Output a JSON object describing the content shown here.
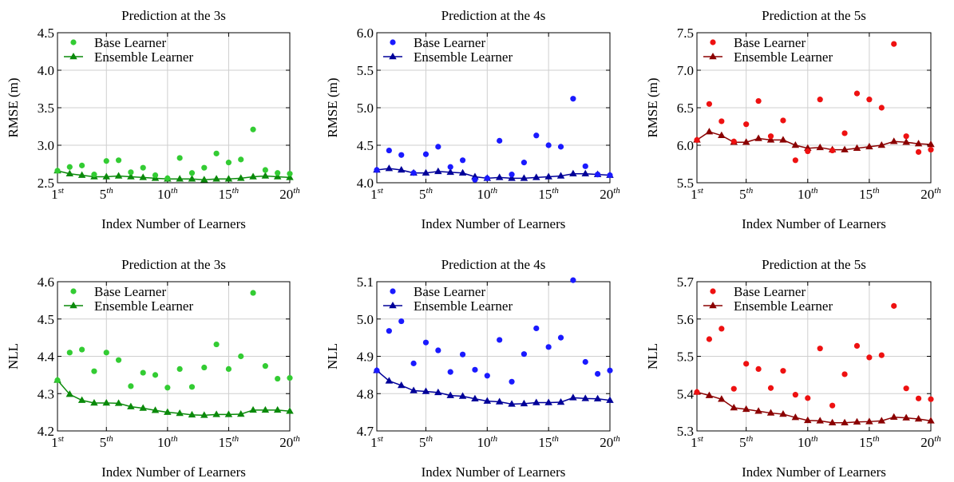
{
  "x_ticks": [
    {
      "value": 1,
      "num": "1",
      "suffix": "st"
    },
    {
      "value": 5,
      "num": "5",
      "suffix": "th"
    },
    {
      "value": 10,
      "num": "10",
      "suffix": "th"
    },
    {
      "value": 15,
      "num": "15",
      "suffix": "th"
    },
    {
      "value": 20,
      "num": "20",
      "suffix": "th"
    }
  ],
  "chart_data": [
    {
      "type": "scatter+line",
      "title": "Prediction at the 3s",
      "xlabel": "Index Number of Learners",
      "ylabel": "RMSE (m)",
      "xlim": [
        1,
        20
      ],
      "ylim": [
        2.5,
        4.5
      ],
      "yticks": [
        "2.5",
        "3.0",
        "3.5",
        "4.0",
        "4.5"
      ],
      "grid": true,
      "legend": "top-left",
      "color": "#33cc33",
      "line_color": "#0a8a0a",
      "x": [
        1,
        2,
        3,
        4,
        5,
        6,
        7,
        8,
        9,
        10,
        11,
        12,
        13,
        14,
        15,
        16,
        17,
        18,
        19,
        20
      ],
      "series": [
        {
          "name": "Base Learner",
          "values": [
            2.66,
            2.71,
            2.73,
            2.61,
            2.79,
            2.8,
            2.64,
            2.7,
            2.6,
            2.56,
            2.83,
            2.63,
            2.7,
            2.89,
            2.77,
            2.81,
            3.21,
            2.67,
            2.63,
            2.62
          ]
        },
        {
          "name": "Ensemble Learner",
          "values": [
            2.66,
            2.62,
            2.6,
            2.58,
            2.58,
            2.59,
            2.58,
            2.57,
            2.56,
            2.55,
            2.55,
            2.55,
            2.54,
            2.55,
            2.55,
            2.56,
            2.58,
            2.59,
            2.58,
            2.57
          ]
        }
      ]
    },
    {
      "type": "scatter+line",
      "title": "Prediction at the 4s",
      "xlabel": "Index Number of Learners",
      "ylabel": "RMSE (m)",
      "xlim": [
        1,
        20
      ],
      "ylim": [
        4.0,
        6.0
      ],
      "yticks": [
        "4.0",
        "4.5",
        "5.0",
        "5.5",
        "6.0"
      ],
      "grid": true,
      "legend": "top-left",
      "color": "#1a1aff",
      "line_color": "#000099",
      "x": [
        1,
        2,
        3,
        4,
        5,
        6,
        7,
        8,
        9,
        10,
        11,
        12,
        13,
        14,
        15,
        16,
        17,
        18,
        19,
        20
      ],
      "series": [
        {
          "name": "Base Learner",
          "values": [
            4.17,
            4.43,
            4.37,
            4.13,
            4.38,
            4.48,
            4.21,
            4.3,
            4.04,
            4.06,
            4.56,
            4.11,
            4.27,
            4.63,
            4.5,
            4.48,
            5.12,
            4.22,
            4.11,
            4.1
          ]
        },
        {
          "name": "Ensemble Learner",
          "values": [
            4.17,
            4.19,
            4.17,
            4.13,
            4.13,
            4.15,
            4.14,
            4.13,
            4.08,
            4.06,
            4.07,
            4.06,
            4.06,
            4.07,
            4.08,
            4.09,
            4.12,
            4.12,
            4.11,
            4.1
          ]
        }
      ]
    },
    {
      "type": "scatter+line",
      "title": "Prediction at the 5s",
      "xlabel": "Index Number of Learners",
      "ylabel": "RMSE (m)",
      "xlim": [
        1,
        20
      ],
      "ylim": [
        5.5,
        7.5
      ],
      "yticks": [
        "5.5",
        "6.0",
        "6.5",
        "7.0",
        "7.5"
      ],
      "grid": true,
      "legend": "top-left",
      "color": "#ee1111",
      "line_color": "#8b0000",
      "x": [
        1,
        2,
        3,
        4,
        5,
        6,
        7,
        8,
        9,
        10,
        11,
        12,
        13,
        14,
        15,
        16,
        17,
        18,
        19,
        20
      ],
      "series": [
        {
          "name": "Base Learner",
          "values": [
            6.07,
            6.55,
            6.32,
            6.05,
            6.28,
            6.59,
            6.12,
            6.33,
            5.8,
            5.92,
            6.61,
            5.93,
            6.16,
            6.69,
            6.61,
            6.5,
            7.35,
            6.12,
            5.91,
            5.94
          ]
        },
        {
          "name": "Ensemble Learner",
          "values": [
            6.07,
            6.18,
            6.13,
            6.04,
            6.04,
            6.09,
            6.07,
            6.07,
            6.0,
            5.96,
            5.97,
            5.94,
            5.94,
            5.96,
            5.98,
            6.0,
            6.05,
            6.04,
            6.02,
            6.01
          ]
        }
      ]
    },
    {
      "type": "scatter+line",
      "title": "Prediction at the 3s",
      "xlabel": "Index Number of Learners",
      "ylabel": "NLL",
      "xlim": [
        1,
        20
      ],
      "ylim": [
        4.2,
        4.6
      ],
      "yticks": [
        "4.2",
        "4.3",
        "4.4",
        "4.5",
        "4.6"
      ],
      "grid": true,
      "legend": "top-left",
      "color": "#33cc33",
      "line_color": "#0a8a0a",
      "x": [
        1,
        2,
        3,
        4,
        5,
        6,
        7,
        8,
        9,
        10,
        11,
        12,
        13,
        14,
        15,
        16,
        17,
        18,
        19,
        20
      ],
      "series": [
        {
          "name": "Base Learner",
          "values": [
            4.336,
            4.41,
            4.418,
            4.36,
            4.41,
            4.39,
            4.32,
            4.356,
            4.35,
            4.316,
            4.366,
            4.318,
            4.37,
            4.432,
            4.366,
            4.4,
            4.57,
            4.374,
            4.34,
            4.342
          ]
        },
        {
          "name": "Ensemble Learner",
          "values": [
            4.336,
            4.298,
            4.282,
            4.275,
            4.275,
            4.274,
            4.265,
            4.261,
            4.255,
            4.25,
            4.247,
            4.243,
            4.242,
            4.244,
            4.244,
            4.245,
            4.256,
            4.256,
            4.256,
            4.253
          ]
        }
      ]
    },
    {
      "type": "scatter+line",
      "title": "Prediction at the 4s",
      "xlabel": "Index Number of Learners",
      "ylabel": "NLL",
      "xlim": [
        1,
        20
      ],
      "ylim": [
        4.7,
        5.1
      ],
      "yticks": [
        "4.7",
        "4.8",
        "4.9",
        "5.0",
        "5.1"
      ],
      "grid": true,
      "legend": "top-left",
      "color": "#1a1aff",
      "line_color": "#000099",
      "x": [
        1,
        2,
        3,
        4,
        5,
        6,
        7,
        8,
        9,
        10,
        11,
        12,
        13,
        14,
        15,
        16,
        17,
        18,
        19,
        20
      ],
      "series": [
        {
          "name": "Base Learner",
          "values": [
            4.862,
            4.968,
            4.994,
            4.881,
            4.937,
            4.916,
            4.858,
            4.905,
            4.864,
            4.848,
            4.944,
            4.832,
            4.906,
            4.975,
            4.925,
            4.95,
            5.104,
            4.885,
            4.853,
            4.862
          ]
        },
        {
          "name": "Ensemble Learner",
          "values": [
            4.862,
            4.834,
            4.822,
            4.808,
            4.806,
            4.803,
            4.795,
            4.793,
            4.786,
            4.78,
            4.778,
            4.772,
            4.773,
            4.776,
            4.776,
            4.777,
            4.789,
            4.787,
            4.786,
            4.782
          ]
        }
      ]
    },
    {
      "type": "scatter+line",
      "title": "Prediction at the 5s",
      "xlabel": "Index Number of Learners",
      "ylabel": "NLL",
      "xlim": [
        1,
        20
      ],
      "ylim": [
        5.3,
        5.7
      ],
      "yticks": [
        "5.3",
        "5.4",
        "5.5",
        "5.6",
        "5.7"
      ],
      "grid": true,
      "legend": "top-left",
      "color": "#ee1111",
      "line_color": "#8b0000",
      "x": [
        1,
        2,
        3,
        4,
        5,
        6,
        7,
        8,
        9,
        10,
        11,
        12,
        13,
        14,
        15,
        16,
        17,
        18,
        19,
        20
      ],
      "series": [
        {
          "name": "Base Learner",
          "values": [
            5.404,
            5.546,
            5.574,
            5.413,
            5.48,
            5.466,
            5.415,
            5.461,
            5.397,
            5.388,
            5.521,
            5.368,
            5.452,
            5.528,
            5.497,
            5.503,
            5.635,
            5.414,
            5.387,
            5.385
          ]
        },
        {
          "name": "Ensemble Learner",
          "values": [
            5.404,
            5.395,
            5.385,
            5.362,
            5.358,
            5.353,
            5.348,
            5.345,
            5.336,
            5.328,
            5.327,
            5.322,
            5.322,
            5.324,
            5.325,
            5.327,
            5.337,
            5.335,
            5.332,
            5.327
          ]
        }
      ]
    }
  ]
}
